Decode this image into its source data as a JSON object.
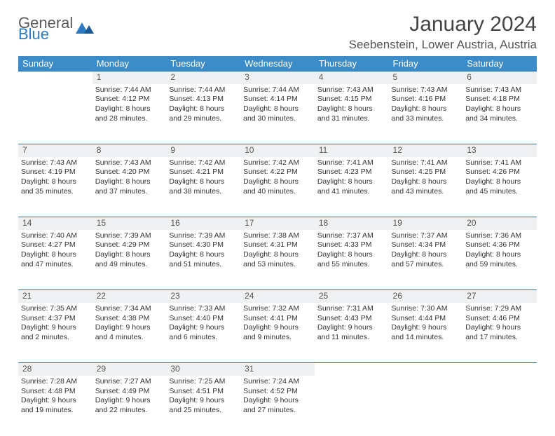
{
  "logo": {
    "top": "General",
    "bottom": "Blue"
  },
  "title": "January 2024",
  "location": "Seebenstein, Lower Austria, Austria",
  "colors": {
    "header_bg": "#3b8bc8",
    "daynum_bg": "#eef0f1",
    "rule": "#2d6da3",
    "logo_blue": "#2d7ac0",
    "logo_gray": "#5a5a5a"
  },
  "weekdays": [
    "Sunday",
    "Monday",
    "Tuesday",
    "Wednesday",
    "Thursday",
    "Friday",
    "Saturday"
  ],
  "weeks": [
    {
      "nums": [
        "",
        "1",
        "2",
        "3",
        "4",
        "5",
        "6"
      ],
      "cells": [
        null,
        {
          "sr": "Sunrise: 7:44 AM",
          "ss": "Sunset: 4:12 PM",
          "d1": "Daylight: 8 hours",
          "d2": "and 28 minutes."
        },
        {
          "sr": "Sunrise: 7:44 AM",
          "ss": "Sunset: 4:13 PM",
          "d1": "Daylight: 8 hours",
          "d2": "and 29 minutes."
        },
        {
          "sr": "Sunrise: 7:44 AM",
          "ss": "Sunset: 4:14 PM",
          "d1": "Daylight: 8 hours",
          "d2": "and 30 minutes."
        },
        {
          "sr": "Sunrise: 7:43 AM",
          "ss": "Sunset: 4:15 PM",
          "d1": "Daylight: 8 hours",
          "d2": "and 31 minutes."
        },
        {
          "sr": "Sunrise: 7:43 AM",
          "ss": "Sunset: 4:16 PM",
          "d1": "Daylight: 8 hours",
          "d2": "and 33 minutes."
        },
        {
          "sr": "Sunrise: 7:43 AM",
          "ss": "Sunset: 4:18 PM",
          "d1": "Daylight: 8 hours",
          "d2": "and 34 minutes."
        }
      ]
    },
    {
      "nums": [
        "7",
        "8",
        "9",
        "10",
        "11",
        "12",
        "13"
      ],
      "cells": [
        {
          "sr": "Sunrise: 7:43 AM",
          "ss": "Sunset: 4:19 PM",
          "d1": "Daylight: 8 hours",
          "d2": "and 35 minutes."
        },
        {
          "sr": "Sunrise: 7:43 AM",
          "ss": "Sunset: 4:20 PM",
          "d1": "Daylight: 8 hours",
          "d2": "and 37 minutes."
        },
        {
          "sr": "Sunrise: 7:42 AM",
          "ss": "Sunset: 4:21 PM",
          "d1": "Daylight: 8 hours",
          "d2": "and 38 minutes."
        },
        {
          "sr": "Sunrise: 7:42 AM",
          "ss": "Sunset: 4:22 PM",
          "d1": "Daylight: 8 hours",
          "d2": "and 40 minutes."
        },
        {
          "sr": "Sunrise: 7:41 AM",
          "ss": "Sunset: 4:23 PM",
          "d1": "Daylight: 8 hours",
          "d2": "and 41 minutes."
        },
        {
          "sr": "Sunrise: 7:41 AM",
          "ss": "Sunset: 4:25 PM",
          "d1": "Daylight: 8 hours",
          "d2": "and 43 minutes."
        },
        {
          "sr": "Sunrise: 7:41 AM",
          "ss": "Sunset: 4:26 PM",
          "d1": "Daylight: 8 hours",
          "d2": "and 45 minutes."
        }
      ]
    },
    {
      "nums": [
        "14",
        "15",
        "16",
        "17",
        "18",
        "19",
        "20"
      ],
      "cells": [
        {
          "sr": "Sunrise: 7:40 AM",
          "ss": "Sunset: 4:27 PM",
          "d1": "Daylight: 8 hours",
          "d2": "and 47 minutes."
        },
        {
          "sr": "Sunrise: 7:39 AM",
          "ss": "Sunset: 4:29 PM",
          "d1": "Daylight: 8 hours",
          "d2": "and 49 minutes."
        },
        {
          "sr": "Sunrise: 7:39 AM",
          "ss": "Sunset: 4:30 PM",
          "d1": "Daylight: 8 hours",
          "d2": "and 51 minutes."
        },
        {
          "sr": "Sunrise: 7:38 AM",
          "ss": "Sunset: 4:31 PM",
          "d1": "Daylight: 8 hours",
          "d2": "and 53 minutes."
        },
        {
          "sr": "Sunrise: 7:37 AM",
          "ss": "Sunset: 4:33 PM",
          "d1": "Daylight: 8 hours",
          "d2": "and 55 minutes."
        },
        {
          "sr": "Sunrise: 7:37 AM",
          "ss": "Sunset: 4:34 PM",
          "d1": "Daylight: 8 hours",
          "d2": "and 57 minutes."
        },
        {
          "sr": "Sunrise: 7:36 AM",
          "ss": "Sunset: 4:36 PM",
          "d1": "Daylight: 8 hours",
          "d2": "and 59 minutes."
        }
      ]
    },
    {
      "nums": [
        "21",
        "22",
        "23",
        "24",
        "25",
        "26",
        "27"
      ],
      "cells": [
        {
          "sr": "Sunrise: 7:35 AM",
          "ss": "Sunset: 4:37 PM",
          "d1": "Daylight: 9 hours",
          "d2": "and 2 minutes."
        },
        {
          "sr": "Sunrise: 7:34 AM",
          "ss": "Sunset: 4:38 PM",
          "d1": "Daylight: 9 hours",
          "d2": "and 4 minutes."
        },
        {
          "sr": "Sunrise: 7:33 AM",
          "ss": "Sunset: 4:40 PM",
          "d1": "Daylight: 9 hours",
          "d2": "and 6 minutes."
        },
        {
          "sr": "Sunrise: 7:32 AM",
          "ss": "Sunset: 4:41 PM",
          "d1": "Daylight: 9 hours",
          "d2": "and 9 minutes."
        },
        {
          "sr": "Sunrise: 7:31 AM",
          "ss": "Sunset: 4:43 PM",
          "d1": "Daylight: 9 hours",
          "d2": "and 11 minutes."
        },
        {
          "sr": "Sunrise: 7:30 AM",
          "ss": "Sunset: 4:44 PM",
          "d1": "Daylight: 9 hours",
          "d2": "and 14 minutes."
        },
        {
          "sr": "Sunrise: 7:29 AM",
          "ss": "Sunset: 4:46 PM",
          "d1": "Daylight: 9 hours",
          "d2": "and 17 minutes."
        }
      ]
    },
    {
      "nums": [
        "28",
        "29",
        "30",
        "31",
        "",
        "",
        ""
      ],
      "cells": [
        {
          "sr": "Sunrise: 7:28 AM",
          "ss": "Sunset: 4:48 PM",
          "d1": "Daylight: 9 hours",
          "d2": "and 19 minutes."
        },
        {
          "sr": "Sunrise: 7:27 AM",
          "ss": "Sunset: 4:49 PM",
          "d1": "Daylight: 9 hours",
          "d2": "and 22 minutes."
        },
        {
          "sr": "Sunrise: 7:25 AM",
          "ss": "Sunset: 4:51 PM",
          "d1": "Daylight: 9 hours",
          "d2": "and 25 minutes."
        },
        {
          "sr": "Sunrise: 7:24 AM",
          "ss": "Sunset: 4:52 PM",
          "d1": "Daylight: 9 hours",
          "d2": "and 27 minutes."
        },
        null,
        null,
        null
      ]
    }
  ]
}
